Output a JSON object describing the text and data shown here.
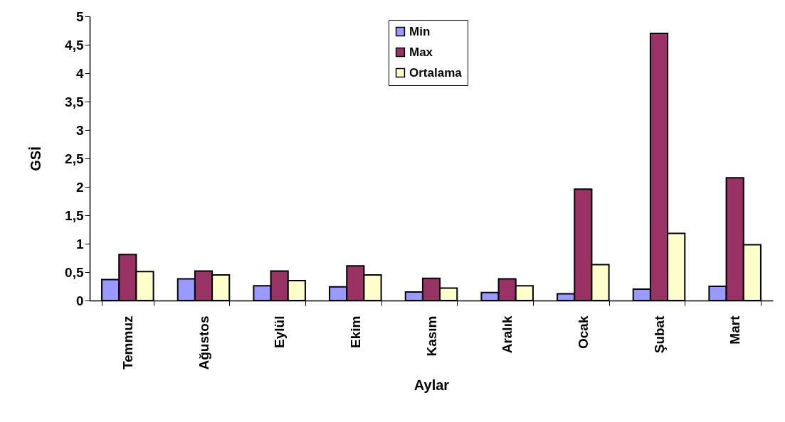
{
  "chart_data": {
    "type": "bar",
    "xlabel": "Aylar",
    "ylabel": "GSİ",
    "categories": [
      "Temmuz",
      "Ağustos",
      "Eylül",
      "Ekim",
      "Kasım",
      "Aralık",
      "Ocak",
      "Şubat",
      "Mart"
    ],
    "series": [
      {
        "name": "Min",
        "color": "#9999ff",
        "values": [
          0.37,
          0.38,
          0.26,
          0.24,
          0.15,
          0.14,
          0.12,
          0.2,
          0.25
        ]
      },
      {
        "name": "Max",
        "color": "#993366",
        "values": [
          0.81,
          0.52,
          0.52,
          0.61,
          0.39,
          0.38,
          1.96,
          4.7,
          2.16
        ]
      },
      {
        "name": "Ortalama",
        "color": "#ffffcc",
        "values": [
          0.51,
          0.45,
          0.35,
          0.45,
          0.22,
          0.26,
          0.63,
          1.18,
          0.98
        ]
      }
    ],
    "ylim": [
      0,
      5
    ],
    "yticks": [
      0,
      {
        "value": 0.5,
        "label": "0,5"
      },
      1,
      {
        "value": 1.5,
        "label": "1,5"
      },
      2,
      {
        "value": 2.5,
        "label": "2,5"
      },
      3,
      {
        "value": 3.5,
        "label": "3,5"
      },
      4,
      {
        "value": 4.5,
        "label": "4,5"
      },
      5
    ],
    "grid": false,
    "legend": "top"
  }
}
